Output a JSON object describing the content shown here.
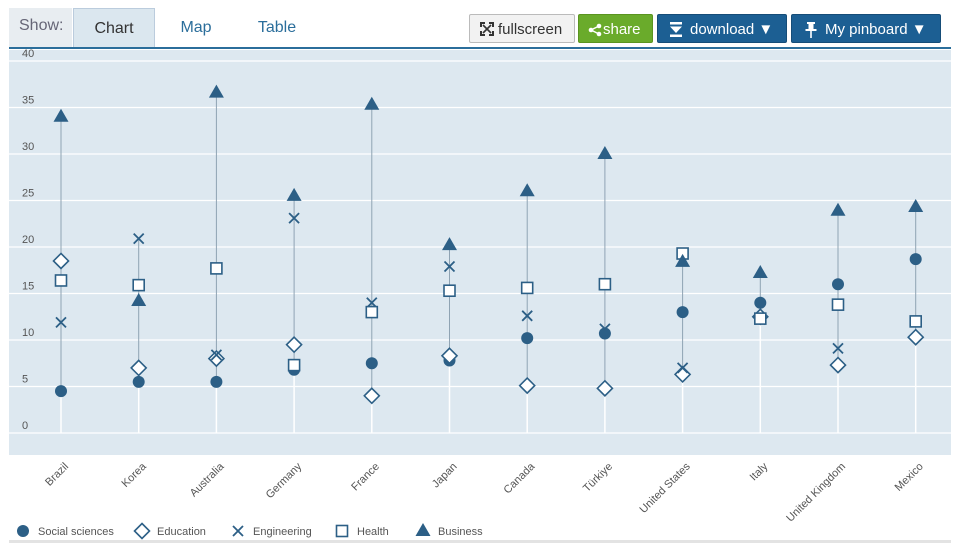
{
  "toolbar": {
    "show_label": "Show:",
    "tabs": [
      {
        "label": "Chart",
        "active": true
      },
      {
        "label": "Map",
        "active": false
      },
      {
        "label": "Table",
        "active": false
      }
    ],
    "fullscreen_label": "fullscreen",
    "share_label": "share",
    "download_label": "download ▼",
    "pinboard_label": "My pinboard ▼",
    "colors": {
      "share": "#6aab2b",
      "primary": "#1c5f93"
    }
  },
  "chart_data": {
    "type": "scatter",
    "title": "",
    "xlabel": "",
    "ylabel": "",
    "ylim": [
      0,
      40
    ],
    "yticks": [
      0,
      5,
      10,
      15,
      20,
      25,
      30,
      35,
      40
    ],
    "grid": true,
    "legend_position": "bottom",
    "categories": [
      "Brazil",
      "Korea",
      "Australia",
      "Germany",
      "France",
      "Japan",
      "Canada",
      "Türkiye",
      "United States",
      "Italy",
      "United Kingdom",
      "Mexico"
    ],
    "series": [
      {
        "name": "Social sciences",
        "marker": "circle",
        "values": [
          4.5,
          5.5,
          5.5,
          6.8,
          7.5,
          7.8,
          10.2,
          10.7,
          13.0,
          14.0,
          16.0,
          18.7
        ]
      },
      {
        "name": "Education",
        "marker": "diamond",
        "values": [
          18.5,
          7.0,
          8.0,
          9.5,
          4.0,
          8.3,
          5.1,
          4.8,
          6.3,
          12.5,
          7.3,
          10.3
        ]
      },
      {
        "name": "Engineering",
        "marker": "x",
        "values": [
          11.9,
          20.9,
          8.4,
          23.1,
          14.0,
          17.9,
          12.6,
          11.2,
          7.0,
          12.2,
          9.1,
          12.0
        ]
      },
      {
        "name": "Health",
        "marker": "square",
        "values": [
          16.4,
          15.9,
          17.7,
          7.3,
          13.0,
          15.3,
          15.6,
          16.0,
          19.3,
          12.3,
          13.8,
          12.0
        ]
      },
      {
        "name": "Business",
        "marker": "triangle",
        "values": [
          34.0,
          14.2,
          36.6,
          25.5,
          35.3,
          20.2,
          26.0,
          30.0,
          18.4,
          17.2,
          23.9,
          24.3
        ]
      }
    ],
    "colors": {
      "plot_bg": "#dde8f0",
      "marker": "#2c5f86",
      "range_line": "#8fa3b3"
    }
  }
}
